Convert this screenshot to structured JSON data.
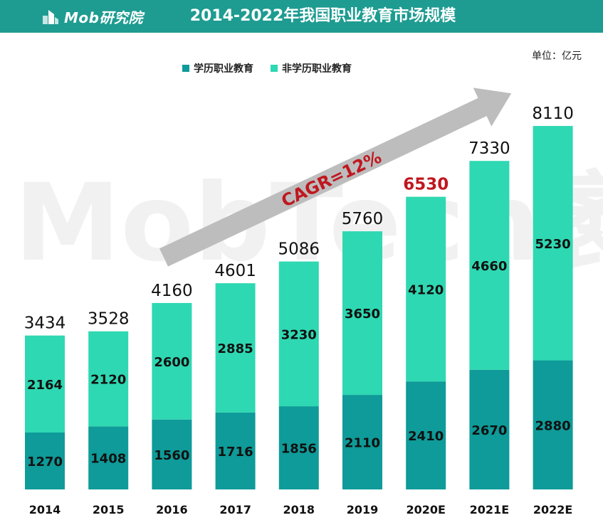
{
  "header": {
    "logo_text": "Mob研究院",
    "title": "2014-2022年我国职业教育市场规模"
  },
  "unit_label": "单位：亿元",
  "watermark": "MobTech袤博",
  "colors": {
    "header_bg": "#1e9c91",
    "academic": "#0e9b99",
    "non_academic": "#2ed8b2",
    "highlight": "#c0171f",
    "arrow": "#bdbdbd"
  },
  "chart_data": {
    "type": "bar",
    "stacked": true,
    "title": "2014-2022年我国职业教育市场规模",
    "ylabel": "单位：亿元",
    "categories": [
      "2014",
      "2015",
      "2016",
      "2017",
      "2018",
      "2019",
      "2020E",
      "2021E",
      "2022E"
    ],
    "series": [
      {
        "name": "学历职业教育",
        "values": [
          1270,
          1408,
          1560,
          1716,
          1856,
          2110,
          2410,
          2670,
          2880
        ]
      },
      {
        "name": "非学历职业教育",
        "values": [
          2164,
          2120,
          2600,
          2885,
          3230,
          3650,
          4120,
          4660,
          5230
        ]
      }
    ],
    "totals": [
      "3434",
      "3528",
      "4160",
      "4601",
      "5086",
      "5760",
      "6530",
      "7330",
      "8110"
    ],
    "highlight_index": 6,
    "annotation": "CAGR=12%",
    "ylim": [
      0,
      8500
    ]
  }
}
